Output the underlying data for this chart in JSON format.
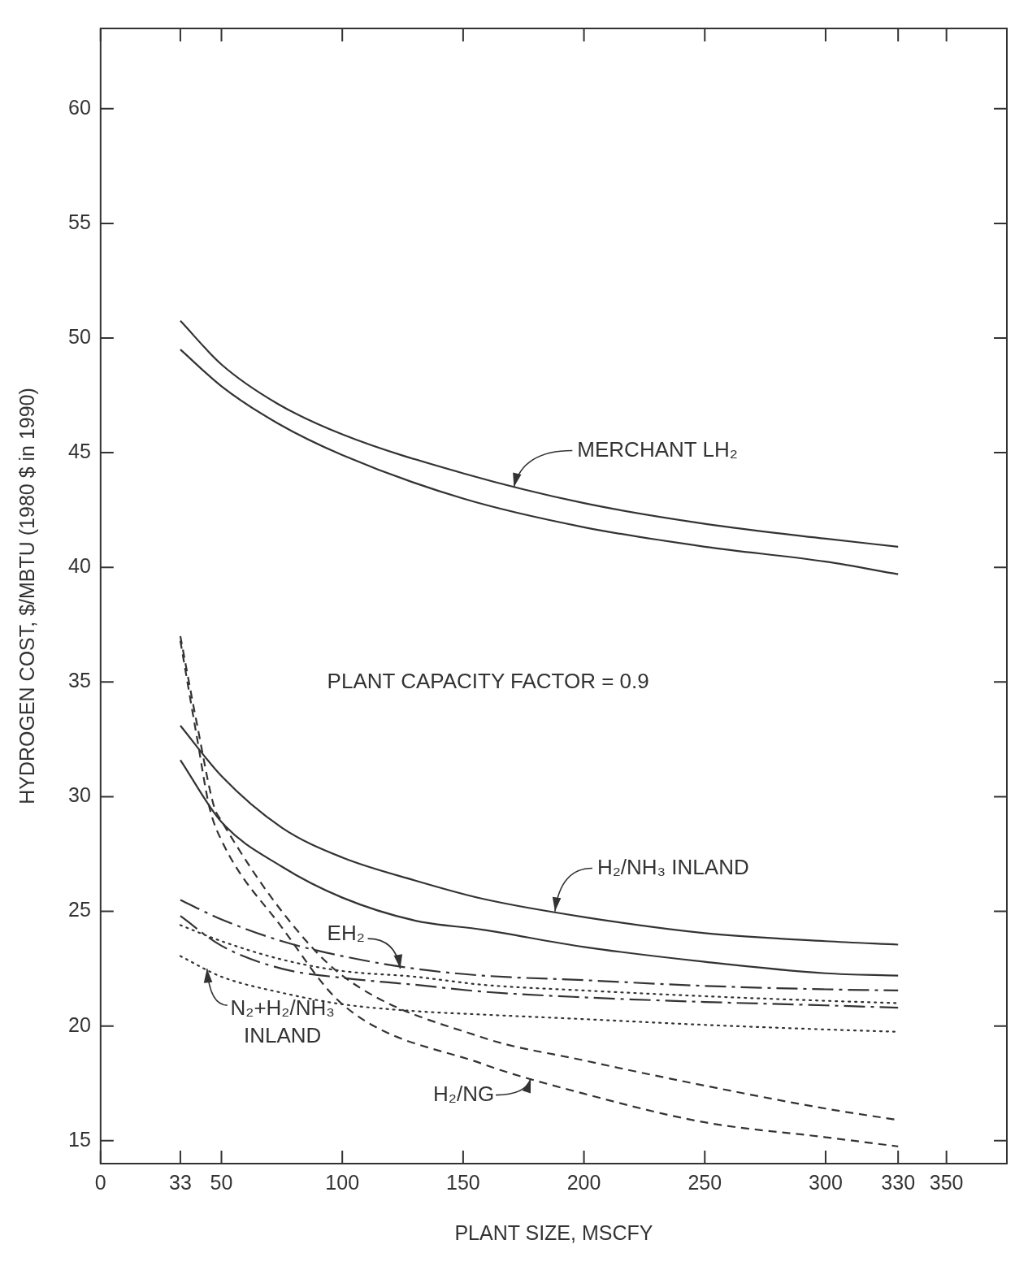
{
  "chart_data": {
    "type": "line",
    "xlabel": "PLANT SIZE, MSCFY",
    "ylabel": "HYDROGEN COST, $/MBTU (1980 $ in 1990)",
    "xlim": [
      0,
      375
    ],
    "ylim": [
      14,
      63.5
    ],
    "xticks": [
      0,
      33,
      50,
      100,
      150,
      200,
      250,
      300,
      330,
      350
    ],
    "yticks": [
      15,
      20,
      25,
      30,
      35,
      40,
      45,
      50,
      55,
      60
    ],
    "grid": false,
    "legend": false,
    "marker": "none",
    "annotations": [
      "PLANT CAPACITY FACTOR = 0.9",
      {
        "text": "MERCHANT LH₂",
        "x": 171,
        "y": 43.5
      },
      {
        "text": "H₂/NH₃ INLAND",
        "x": 188,
        "y": 25.0
      },
      {
        "text": "EH₂",
        "x": 124,
        "y": 22.5
      },
      {
        "text": "N₂+H₂/NH₃\nINLAND",
        "x": 44,
        "y": 22.5
      },
      {
        "text": "H₂/NG",
        "x": 178,
        "y": 17.7
      }
    ],
    "series": [
      {
        "color": "#333333",
        "line_style": "solid",
        "x": [
          33,
          50,
          73,
          100,
          150,
          200,
          250,
          300,
          330
        ],
        "values": [
          50.75,
          48.85,
          47.15,
          45.8,
          44.1,
          42.8,
          41.9,
          41.25,
          40.9
        ]
      },
      {
        "color": "#333333",
        "line_style": "solid",
        "x": [
          33,
          50,
          73,
          100,
          150,
          200,
          250,
          300,
          330
        ],
        "values": [
          49.5,
          47.9,
          46.3,
          44.9,
          43.0,
          41.75,
          40.9,
          40.25,
          39.7
        ]
      },
      {
        "color": "#333333",
        "line_style": "solid",
        "x": [
          33,
          50,
          75,
          100,
          130,
          158,
          200,
          250,
          300,
          330
        ],
        "values": [
          33.1,
          30.9,
          28.65,
          27.35,
          26.35,
          25.55,
          24.75,
          24.05,
          23.7,
          23.55
        ]
      },
      {
        "color": "#333333",
        "line_style": "solid",
        "x": [
          33,
          50,
          75,
          100,
          130,
          158,
          200,
          250,
          300,
          330
        ],
        "values": [
          31.6,
          28.9,
          26.95,
          25.6,
          24.6,
          24.2,
          23.45,
          22.8,
          22.3,
          22.2
        ]
      },
      {
        "color": "#333333",
        "line_style": "dashdot",
        "x": [
          33,
          50,
          75,
          100,
          130,
          158,
          200,
          250,
          300,
          330
        ],
        "values": [
          25.5,
          24.65,
          23.7,
          23.05,
          22.5,
          22.2,
          22.0,
          21.75,
          21.6,
          21.55
        ]
      },
      {
        "color": "#333333",
        "line_style": "dashdot",
        "x": [
          33,
          50,
          75,
          100,
          130,
          158,
          200,
          250,
          300,
          330
        ],
        "values": [
          24.8,
          23.5,
          22.5,
          22.1,
          21.8,
          21.5,
          21.25,
          21.05,
          20.9,
          20.8
        ]
      },
      {
        "color": "#333333",
        "line_style": "dotted",
        "x": [
          33,
          50,
          75,
          100,
          130,
          158,
          200,
          250,
          300,
          330
        ],
        "values": [
          24.4,
          23.7,
          22.9,
          22.4,
          22.15,
          21.8,
          21.55,
          21.3,
          21.1,
          21.0
        ]
      },
      {
        "color": "#333333",
        "line_style": "dotted",
        "x": [
          33,
          50,
          75,
          100,
          130,
          158,
          200,
          250,
          300,
          330
        ],
        "values": [
          23.05,
          22.15,
          21.45,
          20.95,
          20.65,
          20.5,
          20.3,
          20.05,
          19.85,
          19.75
        ]
      },
      {
        "color": "#333333",
        "line_style": "dashed",
        "x": [
          33,
          40,
          47,
          50,
          75,
          100,
          158,
          200,
          250,
          300,
          330
        ],
        "values": [
          37.0,
          33.1,
          29.55,
          28.95,
          25.0,
          22.2,
          19.5,
          18.5,
          17.4,
          16.4,
          15.9
        ]
      },
      {
        "color": "#333333",
        "line_style": "dashed",
        "x": [
          33,
          40,
          45,
          50,
          75,
          100,
          158,
          200,
          250,
          300,
          330
        ],
        "values": [
          36.8,
          32.5,
          29.55,
          28.1,
          24.3,
          20.95,
          18.35,
          17.05,
          15.8,
          15.15,
          14.75
        ]
      }
    ]
  }
}
